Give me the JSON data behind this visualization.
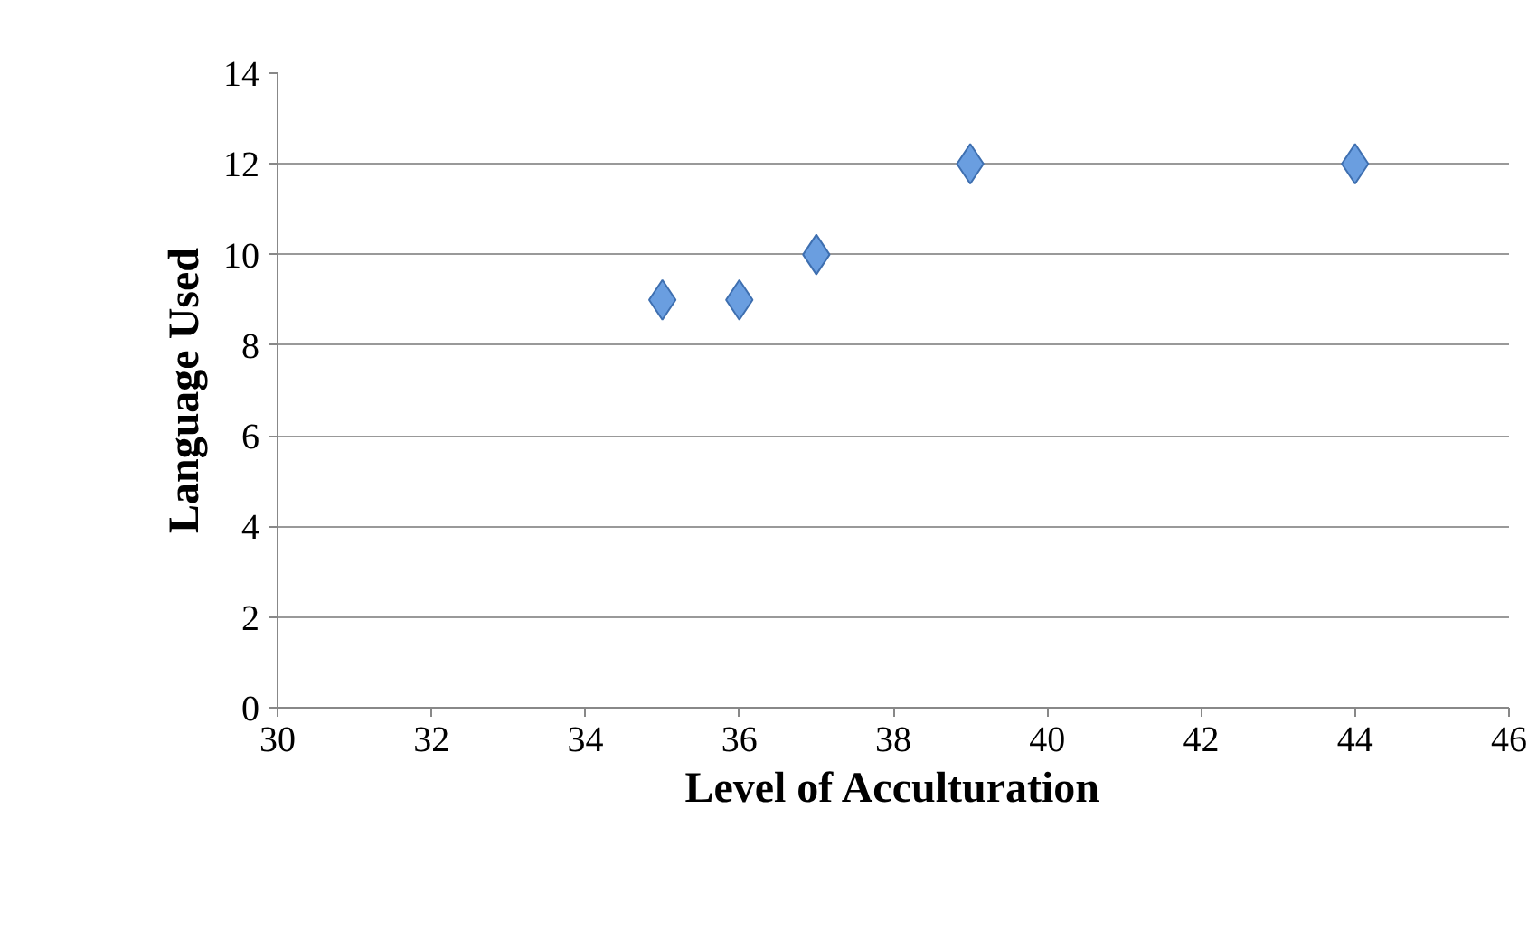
{
  "chart_data": {
    "type": "scatter",
    "xlabel": "Level of Acculturation",
    "ylabel": "Language Used",
    "x": [
      35,
      36,
      37,
      39,
      44
    ],
    "values": [
      9,
      9,
      10,
      12,
      12
    ],
    "color": "#6a9ee0",
    "marker": "diamond",
    "grid": "y",
    "xlim": [
      30,
      46
    ],
    "xticks": [
      30,
      32,
      34,
      36,
      38,
      40,
      42,
      44,
      46
    ],
    "ylim": [
      0,
      14
    ],
    "yticks": [
      0,
      2,
      4,
      6,
      8,
      10,
      12,
      14
    ]
  }
}
